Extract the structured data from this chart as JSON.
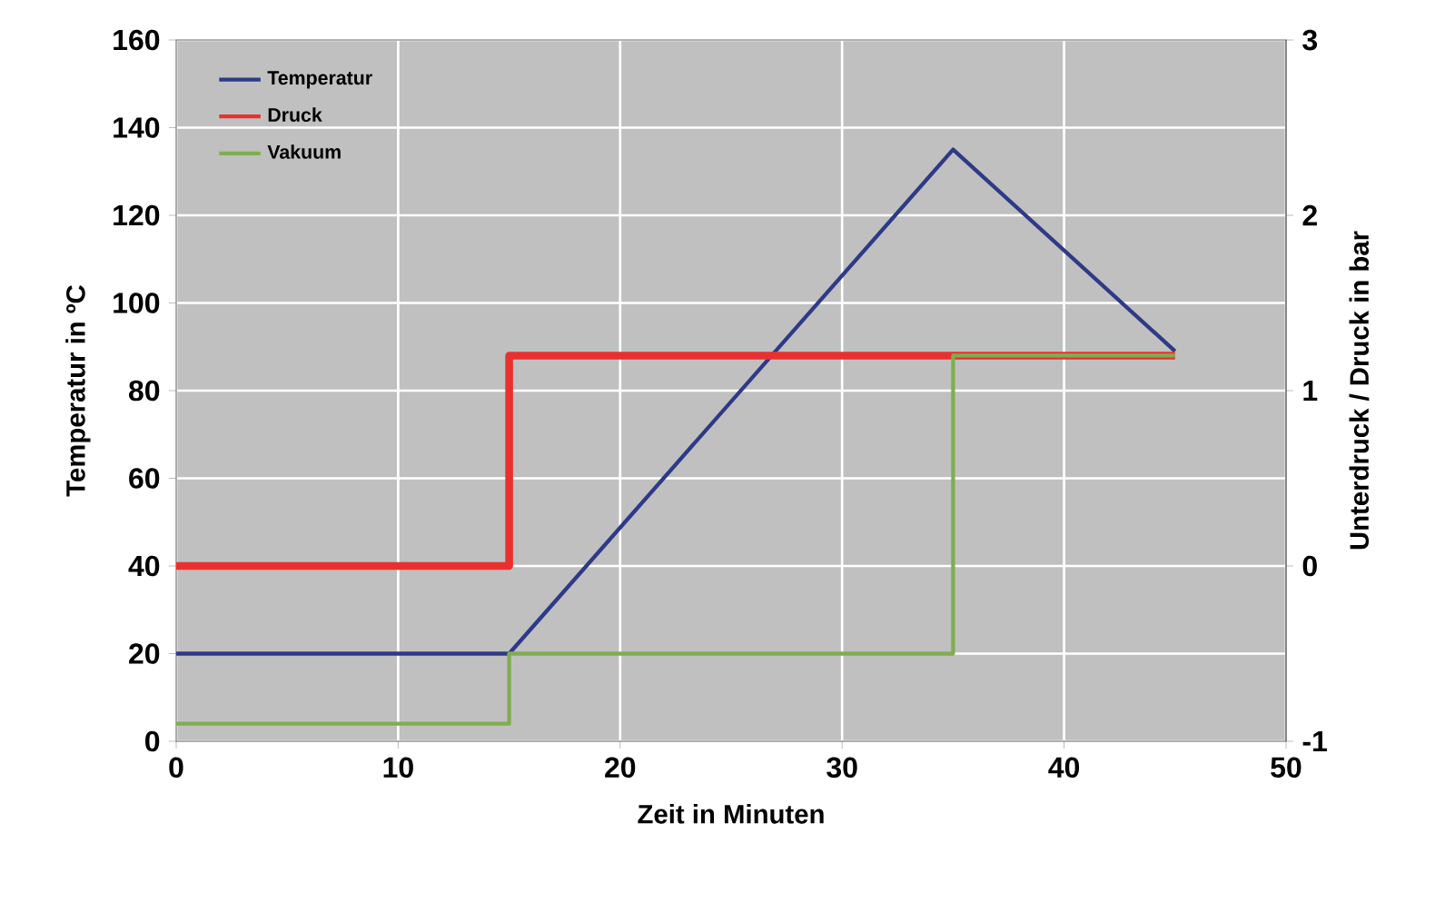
{
  "chart_data": {
    "type": "line",
    "xlabel": "Zeit in Minuten",
    "ylabel": "Temperatur in ºC",
    "y2label": "Unterdruck / Druck in bar",
    "xlim": [
      0,
      50
    ],
    "xticks": [
      0,
      10,
      20,
      30,
      40,
      50
    ],
    "ylim": [
      0,
      160
    ],
    "yticks": [
      0,
      20,
      40,
      60,
      80,
      100,
      120,
      140,
      160
    ],
    "y2lim": [
      -1,
      3
    ],
    "y2ticks": [
      -1,
      0,
      1,
      2,
      3
    ],
    "grid": true,
    "legend": "top left",
    "series": [
      {
        "name": "Temperatur",
        "color": "#2e3a87",
        "x": [
          0,
          15,
          35,
          45
        ],
        "values": [
          20,
          20,
          135,
          89
        ]
      },
      {
        "name": "Druck",
        "type": "step",
        "axis": "y2",
        "color": "#e8312f",
        "x": [
          0,
          15,
          45
        ],
        "values": [
          0,
          1.2,
          1.2
        ]
      },
      {
        "name": "Vakuum",
        "type": "step",
        "axis": "y2",
        "color": "#7fae4f",
        "x": [
          0,
          15,
          35,
          45
        ],
        "values": [
          -0.9,
          -0.5,
          1.2,
          1.2
        ]
      }
    ]
  }
}
